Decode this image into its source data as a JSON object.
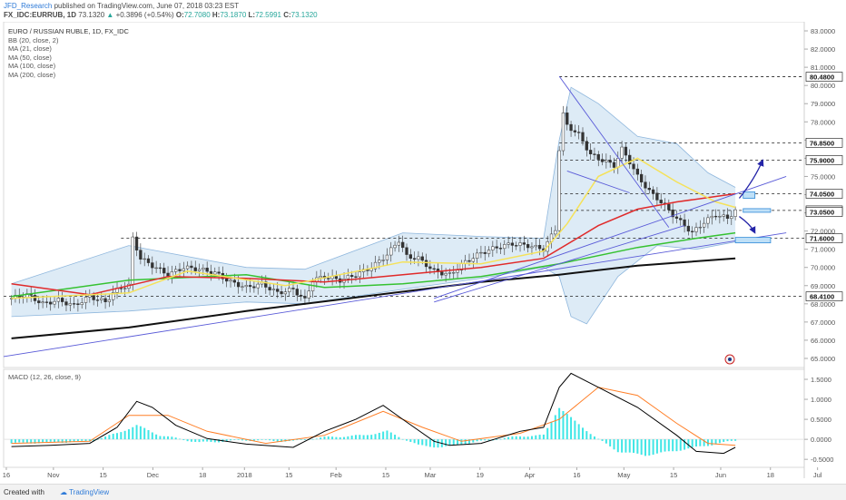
{
  "header": {
    "author": "JFD_Research",
    "published_text": "published on TradingView.com, June 07, 2018 03:23 EST",
    "symbol": "FX_IDC:EURRUB, 1D",
    "last_price": "73.1320",
    "change": "+0.3896 (+0.54%)",
    "o_label": "O:",
    "o_value": "72.7080",
    "h_label": "H:",
    "h_value": "73.1870",
    "l_label": "L:",
    "l_value": "72.5991",
    "c_label": "C:",
    "c_value": "73.1320"
  },
  "legend": {
    "title": "EURO / RUSSIAN RUBLE, 1D, FX_IDC",
    "items": [
      "BB (20, close, 2)",
      "MA (21, close)",
      "MA (50, close)",
      "MA (100, close)",
      "MA (200, close)"
    ]
  },
  "macd_legend": "MACD (12, 26, close, 9)",
  "footer": {
    "created": "Created with",
    "brand": "TradingView"
  },
  "colors": {
    "up": "#26a69a",
    "ma21": "#f5e25a",
    "ma50": "#e02a2a",
    "ma100": "#36c231",
    "ma200": "#111111",
    "bb_fill": "#cfe3f2",
    "bb_line": "#8fb7dd",
    "trend": "#5a5bd8",
    "arrow": "#2424a8",
    "macd_line": "#000000",
    "signal_line": "#ff7f27",
    "histogram": "#3fe6e6"
  },
  "chart_data": [
    {
      "type": "candlestick",
      "title": "EURO / RUSSIAN RUBLE, 1D, FX_IDC",
      "x_ticks": [
        "16",
        "Nov",
        "15",
        "Dec",
        "18",
        "2018",
        "15",
        "Feb",
        "15",
        "Mar",
        "19",
        "Apr",
        "16",
        "May",
        "15",
        "Jun",
        "18",
        "Jul"
      ],
      "ylim": [
        64.5,
        83.5
      ],
      "y_ticks": [
        "83.0000",
        "82.0000",
        "81.0000",
        "80.0000",
        "79.0000",
        "78.0000",
        "77.0000",
        "76.0000",
        "75.0000",
        "74.0000",
        "73.0000",
        "72.0000",
        "71.0000",
        "70.0000",
        "69.0000",
        "68.0000",
        "67.0000",
        "66.0000",
        "65.0000"
      ],
      "price_labels": [
        {
          "value": 80.48,
          "text": "80.4800",
          "dashed": true
        },
        {
          "value": 76.85,
          "text": "76.8500",
          "dashed": true
        },
        {
          "value": 75.9,
          "text": "75.9000",
          "dashed": true
        },
        {
          "value": 74.05,
          "text": "74.0500",
          "dashed": true
        },
        {
          "value": 73.132,
          "text": "73.1320",
          "dashed": true,
          "last": true
        },
        {
          "value": 73.05,
          "text": "73.0500",
          "dashed": false
        },
        {
          "value": 71.6,
          "text": "71.6000",
          "dashed": true
        },
        {
          "value": 68.41,
          "text": "68.4100",
          "dashed": true
        }
      ],
      "close_path": [
        [
          0,
          68.3
        ],
        [
          4,
          68.5
        ],
        [
          8,
          68.0
        ],
        [
          12,
          68.2
        ],
        [
          16,
          67.9
        ],
        [
          20,
          68.4
        ],
        [
          24,
          68.1
        ],
        [
          26,
          68.6
        ],
        [
          28,
          68.9
        ],
        [
          30,
          69.0
        ],
        [
          31,
          71.6
        ],
        [
          33,
          70.5
        ],
        [
          36,
          70.1
        ],
        [
          40,
          69.6
        ],
        [
          44,
          70.0
        ],
        [
          48,
          69.9
        ],
        [
          52,
          69.7
        ],
        [
          56,
          69.2
        ],
        [
          60,
          68.9
        ],
        [
          64,
          69.1
        ],
        [
          68,
          68.6
        ],
        [
          72,
          68.8
        ],
        [
          75,
          68.2
        ],
        [
          77,
          69.3
        ],
        [
          80,
          69.5
        ],
        [
          84,
          69.3
        ],
        [
          88,
          69.6
        ],
        [
          92,
          70.0
        ],
        [
          96,
          70.7
        ],
        [
          99,
          71.5
        ],
        [
          101,
          70.6
        ],
        [
          104,
          70.5
        ],
        [
          108,
          69.8
        ],
        [
          112,
          69.6
        ],
        [
          116,
          70.3
        ],
        [
          120,
          70.8
        ],
        [
          124,
          71.1
        ],
        [
          128,
          71.3
        ],
        [
          132,
          71.2
        ],
        [
          136,
          71.0
        ],
        [
          139,
          72.1
        ],
        [
          140,
          76.5
        ],
        [
          141,
          78.4
        ],
        [
          142,
          77.8
        ],
        [
          145,
          77.3
        ],
        [
          148,
          76.2
        ],
        [
          151,
          75.9
        ],
        [
          154,
          75.6
        ],
        [
          156,
          76.5
        ],
        [
          158,
          75.8
        ],
        [
          160,
          75.0
        ],
        [
          163,
          74.2
        ],
        [
          166,
          73.6
        ],
        [
          169,
          72.9
        ],
        [
          172,
          72.3
        ],
        [
          174,
          71.9
        ],
        [
          177,
          72.5
        ],
        [
          180,
          72.9
        ],
        [
          183,
          72.7
        ],
        [
          185,
          73.13
        ]
      ],
      "bb_upper": [
        [
          0,
          69.1
        ],
        [
          30,
          71.2
        ],
        [
          60,
          70.0
        ],
        [
          75,
          69.9
        ],
        [
          100,
          71.9
        ],
        [
          120,
          71.7
        ],
        [
          136,
          71.6
        ],
        [
          140,
          77.0
        ],
        [
          143,
          79.9
        ],
        [
          150,
          79.0
        ],
        [
          160,
          77.2
        ],
        [
          170,
          76.8
        ],
        [
          178,
          75.2
        ],
        [
          185,
          74.4
        ]
      ],
      "bb_lower": [
        [
          0,
          67.3
        ],
        [
          30,
          67.6
        ],
        [
          60,
          68.1
        ],
        [
          75,
          68.0
        ],
        [
          100,
          68.8
        ],
        [
          120,
          69.4
        ],
        [
          136,
          70.0
        ],
        [
          140,
          69.5
        ],
        [
          143,
          67.3
        ],
        [
          147,
          66.9
        ],
        [
          155,
          69.5
        ],
        [
          165,
          71.2
        ],
        [
          175,
          71.0
        ],
        [
          185,
          71.4
        ]
      ],
      "ma21": [
        [
          0,
          68.3
        ],
        [
          30,
          68.6
        ],
        [
          45,
          69.8
        ],
        [
          70,
          69.0
        ],
        [
          100,
          70.3
        ],
        [
          120,
          70.2
        ],
        [
          136,
          70.9
        ],
        [
          142,
          72.4
        ],
        [
          150,
          75.0
        ],
        [
          160,
          76.0
        ],
        [
          170,
          74.7
        ],
        [
          180,
          73.6
        ],
        [
          185,
          73.3
        ]
      ],
      "ma50": [
        [
          0,
          69.1
        ],
        [
          20,
          68.5
        ],
        [
          40,
          69.5
        ],
        [
          60,
          69.4
        ],
        [
          80,
          69.2
        ],
        [
          100,
          69.6
        ],
        [
          120,
          70.0
        ],
        [
          136,
          70.5
        ],
        [
          150,
          72.3
        ],
        [
          160,
          73.2
        ],
        [
          170,
          73.6
        ],
        [
          180,
          73.9
        ],
        [
          185,
          74.05
        ]
      ],
      "ma100": [
        [
          0,
          68.4
        ],
        [
          30,
          69.3
        ],
        [
          60,
          69.6
        ],
        [
          80,
          68.9
        ],
        [
          100,
          69.1
        ],
        [
          120,
          69.5
        ],
        [
          140,
          70.2
        ],
        [
          160,
          71.1
        ],
        [
          175,
          71.6
        ],
        [
          185,
          71.9
        ]
      ],
      "ma200": [
        [
          0,
          66.1
        ],
        [
          30,
          66.7
        ],
        [
          60,
          67.6
        ],
        [
          90,
          68.4
        ],
        [
          120,
          69.2
        ],
        [
          140,
          69.6
        ],
        [
          160,
          70.1
        ],
        [
          185,
          70.5
        ]
      ],
      "trendlines": [
        {
          "from": [
            140,
            80.5
          ],
          "to": [
            168,
            72.2
          ]
        },
        {
          "from": [
            142,
            75.3
          ],
          "to": [
            158,
            74.1
          ]
        },
        {
          "from": [
            -2,
            65.1
          ],
          "to": [
            198,
            71.9
          ]
        },
        {
          "from": [
            108,
            68.3
          ],
          "to": [
            198,
            75.0
          ]
        },
        {
          "from": [
            108,
            68.1
          ],
          "to": [
            172,
            72.3
          ]
        }
      ],
      "boxes": [
        {
          "from": [
            187,
            74.15
          ],
          "to": [
            190,
            73.8
          ]
        },
        {
          "from": [
            187,
            73.23
          ],
          "to": [
            194,
            73.03
          ]
        },
        {
          "from": [
            185,
            71.65
          ],
          "to": [
            194,
            71.35
          ]
        }
      ],
      "arrows": [
        {
          "from": [
            186,
            73.8
          ],
          "to": [
            192,
            75.9
          ]
        },
        {
          "from": [
            186,
            72.8
          ],
          "to": [
            190,
            71.9
          ]
        }
      ]
    },
    {
      "type": "macd",
      "title": "MACD (12, 26, close, 9)",
      "ylim": [
        -0.7,
        1.75
      ],
      "y_ticks": [
        "1.5000",
        "1.0000",
        "0.5000",
        "0.0000",
        "-0.5000"
      ],
      "macd": [
        [
          0,
          -0.18
        ],
        [
          10,
          -0.15
        ],
        [
          20,
          -0.1
        ],
        [
          27,
          0.3
        ],
        [
          32,
          0.95
        ],
        [
          36,
          0.8
        ],
        [
          42,
          0.35
        ],
        [
          50,
          0.02
        ],
        [
          60,
          -0.12
        ],
        [
          72,
          -0.2
        ],
        [
          80,
          0.2
        ],
        [
          88,
          0.5
        ],
        [
          95,
          0.85
        ],
        [
          100,
          0.5
        ],
        [
          108,
          -0.05
        ],
        [
          112,
          -0.15
        ],
        [
          120,
          -0.1
        ],
        [
          130,
          0.2
        ],
        [
          136,
          0.3
        ],
        [
          140,
          1.3
        ],
        [
          143,
          1.65
        ],
        [
          150,
          1.3
        ],
        [
          160,
          0.8
        ],
        [
          170,
          0.1
        ],
        [
          175,
          -0.3
        ],
        [
          182,
          -0.35
        ],
        [
          185,
          -0.2
        ]
      ],
      "signal": [
        [
          0,
          -0.1
        ],
        [
          20,
          -0.05
        ],
        [
          30,
          0.6
        ],
        [
          40,
          0.6
        ],
        [
          50,
          0.2
        ],
        [
          65,
          -0.1
        ],
        [
          80,
          0.1
        ],
        [
          95,
          0.7
        ],
        [
          105,
          0.3
        ],
        [
          115,
          -0.05
        ],
        [
          130,
          0.15
        ],
        [
          140,
          0.5
        ],
        [
          150,
          1.3
        ],
        [
          160,
          1.1
        ],
        [
          170,
          0.4
        ],
        [
          178,
          -0.1
        ],
        [
          185,
          -0.15
        ]
      ],
      "histogram": [
        [
          0,
          -0.1
        ],
        [
          10,
          -0.08
        ],
        [
          20,
          -0.05
        ],
        [
          27,
          0.15
        ],
        [
          32,
          0.35
        ],
        [
          38,
          0.1
        ],
        [
          48,
          -0.08
        ],
        [
          60,
          -0.02
        ],
        [
          72,
          -0.05
        ],
        [
          80,
          0.05
        ],
        [
          90,
          0.1
        ],
        [
          96,
          0.2
        ],
        [
          104,
          -0.15
        ],
        [
          110,
          -0.2
        ],
        [
          120,
          -0.05
        ],
        [
          130,
          0.08
        ],
        [
          136,
          0.1
        ],
        [
          140,
          0.8
        ],
        [
          144,
          0.45
        ],
        [
          150,
          0.0
        ],
        [
          155,
          -0.3
        ],
        [
          162,
          -0.4
        ],
        [
          170,
          -0.28
        ],
        [
          178,
          -0.15
        ],
        [
          185,
          -0.03
        ]
      ]
    }
  ]
}
